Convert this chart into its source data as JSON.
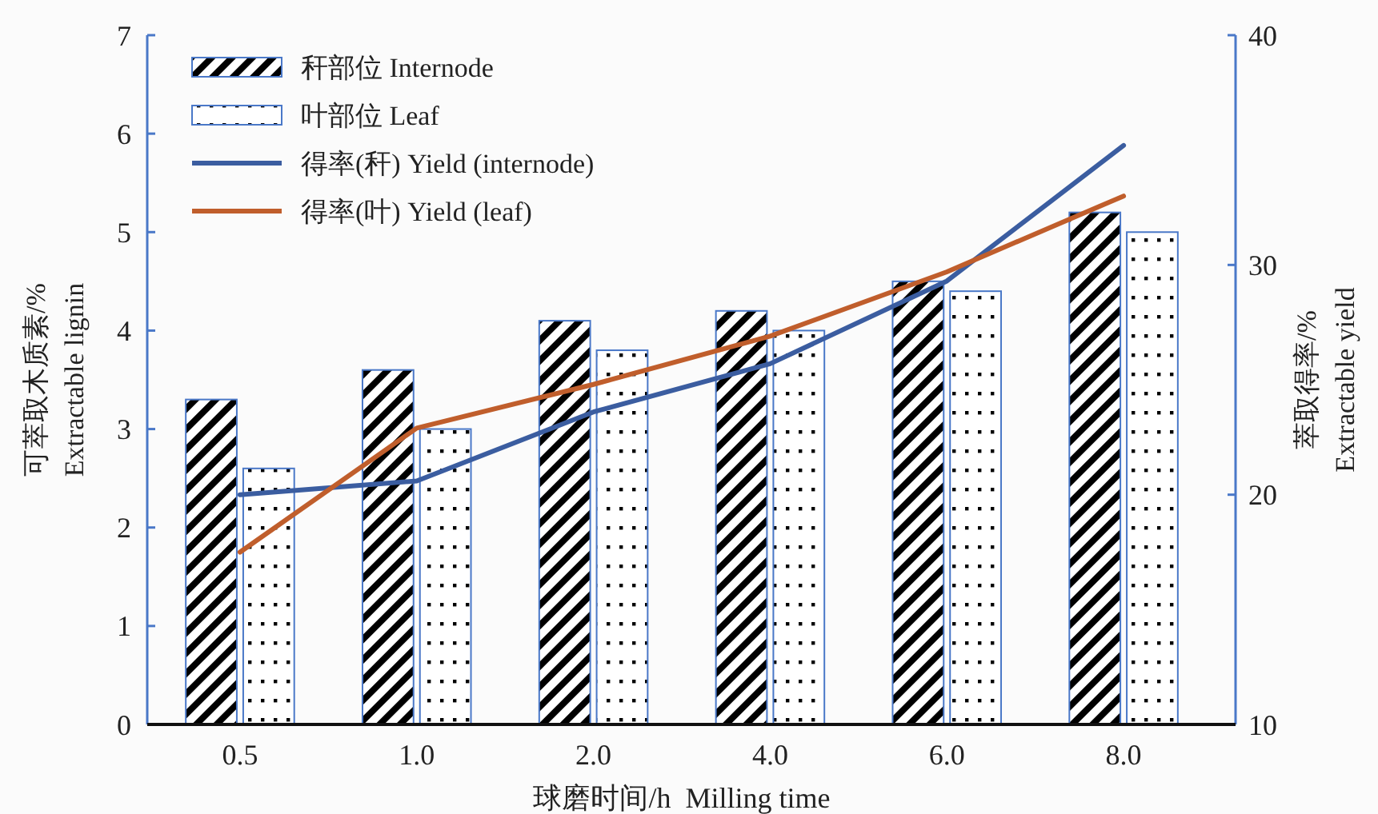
{
  "chart_data": {
    "type": "bar",
    "categories": [
      "0.5",
      "1.0",
      "2.0",
      "4.0",
      "6.0",
      "8.0"
    ],
    "xlabel": "球磨时间/h  Milling time",
    "ylabel": "可萃取木质素/%\nExtractable lignin",
    "y2label": "萃取得率/%\nExtractable yield",
    "ylim": [
      0,
      7
    ],
    "yticks": [
      0,
      1,
      2,
      3,
      4,
      5,
      6,
      7
    ],
    "y2lim": [
      10,
      40
    ],
    "y2ticks": [
      10,
      20,
      30,
      40
    ],
    "legend": "top left",
    "grid": false,
    "series": [
      {
        "name": "秆部位 Internode",
        "color": "#4a78c8",
        "values": [
          3.3,
          3.6,
          4.1,
          4.2,
          4.5,
          5.2
        ]
      },
      {
        "name": "叶部位 Leaf",
        "color": "#4a78c8",
        "values": [
          2.6,
          3.0,
          3.8,
          4.0,
          4.4,
          5.0
        ]
      },
      {
        "name": "得率(秆) Yield (internode)",
        "type": "line",
        "axis": "y2",
        "color": "#3b5da0",
        "values": [
          20.0,
          20.6,
          23.6,
          25.7,
          29.3,
          35.2
        ]
      },
      {
        "name": "得率(叶) Yield (leaf)",
        "type": "line",
        "axis": "y2",
        "color": "#c05e2c",
        "values": [
          17.5,
          22.9,
          24.8,
          26.9,
          29.7,
          33.0
        ]
      }
    ]
  }
}
